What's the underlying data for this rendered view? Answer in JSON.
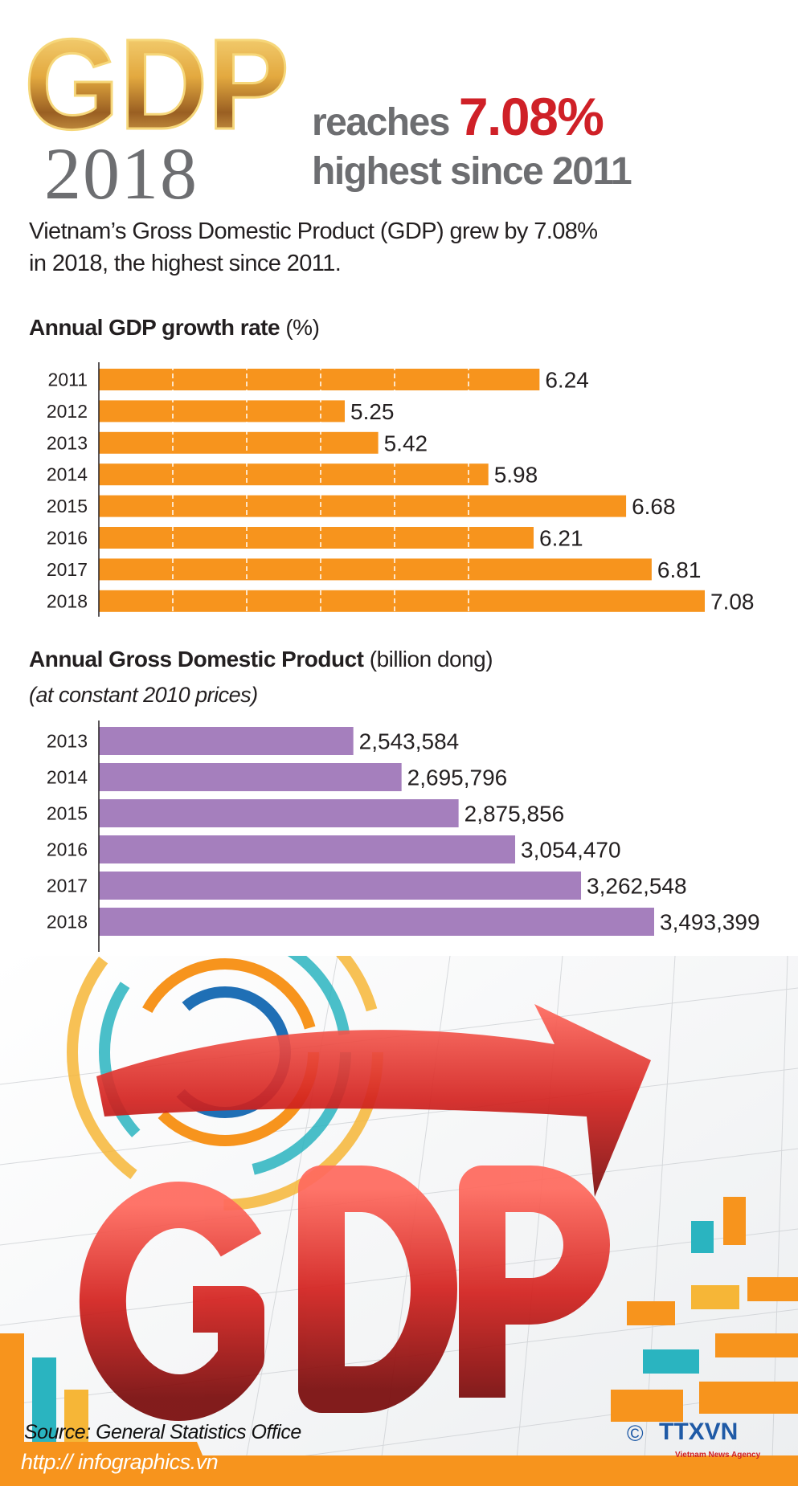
{
  "header": {
    "logo_text": "GDP",
    "year": "2018",
    "line1_prefix": "reaches",
    "line1_value": "7.08%",
    "line2": "highest since 2011"
  },
  "intro": {
    "line1": "Vietnam’s Gross Domestic Product (GDP) grew by 7.08%",
    "line2": "in 2018, the highest since 2011."
  },
  "colors": {
    "growth_bar": "#f7941d",
    "gdp_bar": "#a57fbd",
    "accent_red": "#cf2027",
    "gold": "#d9a53a"
  },
  "chart_data": [
    {
      "type": "bar",
      "orientation": "horizontal",
      "title": "Annual GDP growth rate",
      "title_unit": "(%)",
      "categories": [
        "2011",
        "2012",
        "2013",
        "2014",
        "2015",
        "2016",
        "2017",
        "2018"
      ],
      "values": [
        6.24,
        5.25,
        5.42,
        5.98,
        6.68,
        6.21,
        6.81,
        7.08
      ],
      "labels": [
        "6.24",
        "5.25",
        "5.42",
        "5.98",
        "6.68",
        "6.21",
        "6.81",
        "7.08"
      ],
      "xlim": [
        4,
        8.2
      ],
      "grid": true
    },
    {
      "type": "bar",
      "orientation": "horizontal",
      "title": "Annual Gross Domestic Product",
      "title_unit": "(billion dong)",
      "subtitle": "(at constant 2010 prices)",
      "categories": [
        "2013",
        "2014",
        "2015",
        "2016",
        "2017",
        "2018"
      ],
      "values": [
        2543584,
        2695796,
        2875856,
        3054470,
        3262548,
        3493399
      ],
      "labels": [
        "2,543,584",
        "2,695,796",
        "2,875,856",
        "3,054,470",
        "3,262,548",
        "3,493,399"
      ],
      "xlim": [
        1740000,
        3900000
      ],
      "grid": false
    }
  ],
  "illustration": {
    "text": "GDP"
  },
  "footer": {
    "source": "Source: General Statistics Office",
    "url": "http:// infographics.vn",
    "agency_logo": "TTXVN",
    "agency_tagline": "Vietnam News Agency",
    "copyright": "©"
  }
}
